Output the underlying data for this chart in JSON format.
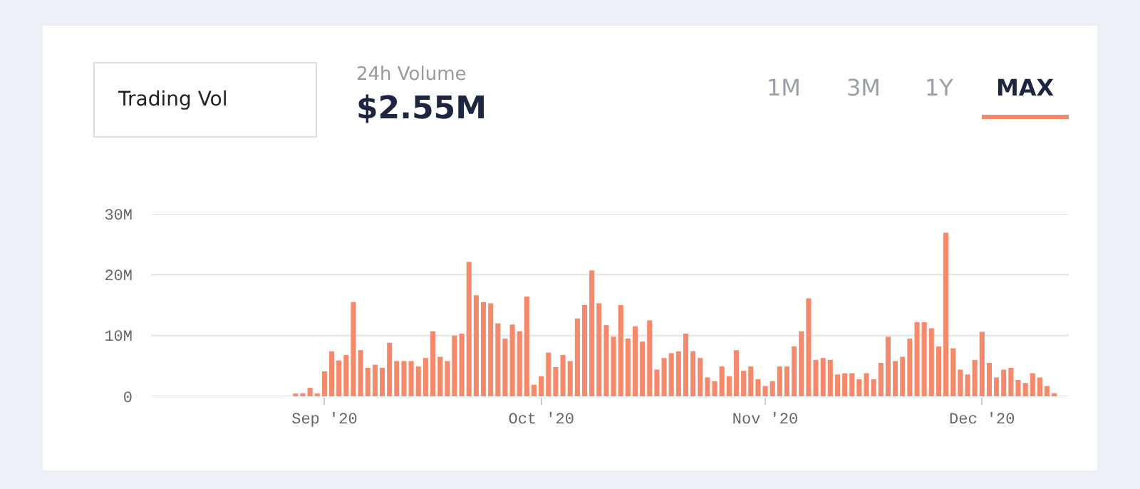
{
  "chart_data": {
    "type": "bar",
    "annotations": [
      "Trading Vol",
      "24h Volume",
      "$2.55M",
      "1M",
      "3M",
      "1Y",
      "MAX"
    ],
    "x": [
      "2020-08-28",
      "2020-08-29",
      "2020-08-30",
      "2020-08-31",
      "2020-09-01",
      "2020-09-02",
      "2020-09-03",
      "2020-09-04",
      "2020-09-05",
      "2020-09-06",
      "2020-09-07",
      "2020-09-08",
      "2020-09-09",
      "2020-09-10",
      "2020-09-11",
      "2020-09-12",
      "2020-09-13",
      "2020-09-14",
      "2020-09-15",
      "2020-09-16",
      "2020-09-17",
      "2020-09-18",
      "2020-09-19",
      "2020-09-20",
      "2020-09-21",
      "2020-09-22",
      "2020-09-23",
      "2020-09-24",
      "2020-09-25",
      "2020-09-26",
      "2020-09-27",
      "2020-09-28",
      "2020-09-29",
      "2020-09-30",
      "2020-10-01",
      "2020-10-02",
      "2020-10-03",
      "2020-10-04",
      "2020-10-05",
      "2020-10-06",
      "2020-10-07",
      "2020-10-08",
      "2020-10-09",
      "2020-10-10",
      "2020-10-11",
      "2020-10-12",
      "2020-10-13",
      "2020-10-14",
      "2020-10-15",
      "2020-10-16",
      "2020-10-17",
      "2020-10-18",
      "2020-10-19",
      "2020-10-20",
      "2020-10-21",
      "2020-10-22",
      "2020-10-23",
      "2020-10-24",
      "2020-10-25",
      "2020-10-26",
      "2020-10-27",
      "2020-10-28",
      "2020-10-29",
      "2020-10-30",
      "2020-10-31",
      "2020-11-01",
      "2020-11-02",
      "2020-11-03",
      "2020-11-04",
      "2020-11-05",
      "2020-11-06",
      "2020-11-07",
      "2020-11-08",
      "2020-11-09",
      "2020-11-10",
      "2020-11-11",
      "2020-11-12",
      "2020-11-13",
      "2020-11-14",
      "2020-11-15",
      "2020-11-16",
      "2020-11-17",
      "2020-11-18",
      "2020-11-19",
      "2020-11-20",
      "2020-11-21",
      "2020-11-22",
      "2020-11-23",
      "2020-11-24",
      "2020-11-25",
      "2020-11-26",
      "2020-11-27",
      "2020-11-28",
      "2020-11-29",
      "2020-11-30",
      "2020-12-01",
      "2020-12-02",
      "2020-12-03",
      "2020-12-04",
      "2020-12-05",
      "2020-12-06",
      "2020-12-07",
      "2020-12-08",
      "2020-12-09",
      "2020-12-10",
      "2020-12-11"
    ],
    "values": [
      0.3,
      0.5,
      1.4,
      0.3,
      4.1,
      7.4,
      5.9,
      6.8,
      15.5,
      7.6,
      4.7,
      5.2,
      4.7,
      8.8,
      5.8,
      5.8,
      5.8,
      4.9,
      6.3,
      10.7,
      6.5,
      5.8,
      10.0,
      10.3,
      22.1,
      16.6,
      15.5,
      15.3,
      12.0,
      9.5,
      11.8,
      10.7,
      16.4,
      1.9,
      3.3,
      7.2,
      4.8,
      6.8,
      5.8,
      12.8,
      15.0,
      20.7,
      15.3,
      11.7,
      9.8,
      15.0,
      9.5,
      11.5,
      9.0,
      12.5,
      4.4,
      6.3,
      7.1,
      7.4,
      10.3,
      7.4,
      6.3,
      3.1,
      2.5,
      4.9,
      3.3,
      7.6,
      4.2,
      4.9,
      2.8,
      1.7,
      2.5,
      4.9,
      4.9,
      8.2,
      10.7,
      16.1,
      6.0,
      6.3,
      6.0,
      3.6,
      3.8,
      3.8,
      2.8,
      3.8,
      2.8,
      5.5,
      9.8,
      5.8,
      6.5,
      9.5,
      12.2,
      12.2,
      11.2,
      8.2,
      26.9,
      7.9,
      4.4,
      3.6,
      6.0,
      10.6,
      5.5,
      3.1,
      4.4,
      4.7,
      2.7,
      2.2,
      3.8,
      3.1,
      1.7,
      0.5
    ],
    "color": "#f4896b",
    "xlim": [
      "2020-08-08",
      "2020-12-13"
    ],
    "xticks": [
      {
        "value": "2020-09-01",
        "label": "Sep '20"
      },
      {
        "value": "2020-10-01",
        "label": "Oct '20"
      },
      {
        "value": "2020-11-01",
        "label": "Nov '20"
      },
      {
        "value": "2020-12-01",
        "label": "Dec '20"
      }
    ],
    "ylim": [
      0,
      30
    ],
    "yticks": [
      {
        "value": 0,
        "label": "0"
      },
      {
        "value": 10,
        "label": "10M"
      },
      {
        "value": 20,
        "label": "20M"
      },
      {
        "value": 30,
        "label": "30M"
      }
    ],
    "grid": "y"
  }
}
